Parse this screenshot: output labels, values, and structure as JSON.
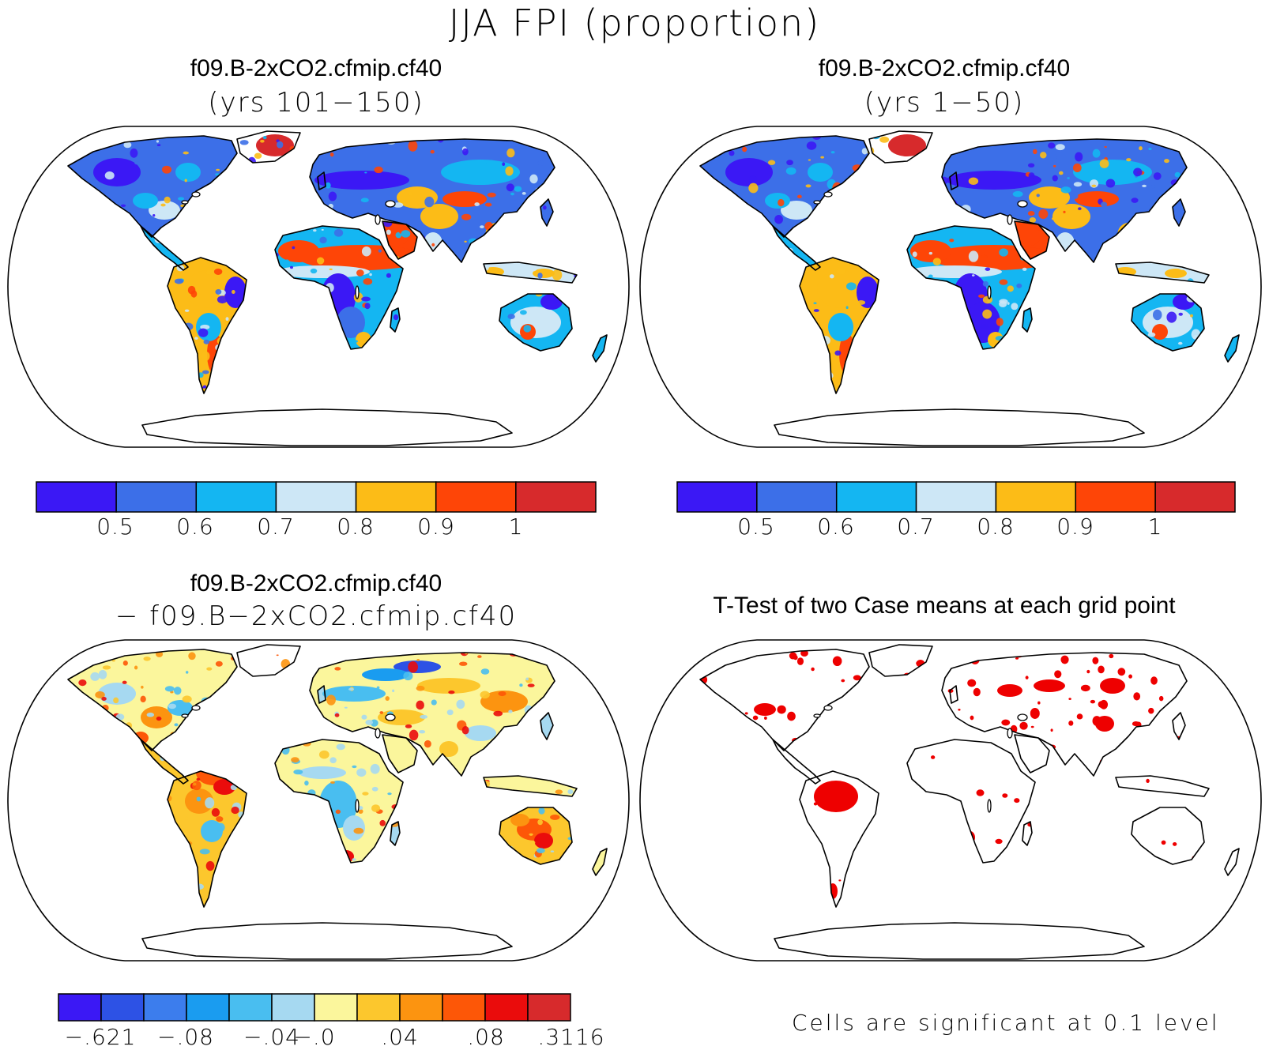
{
  "title": "JJA FPI (proportion)",
  "panels": [
    {
      "id": "case1",
      "title": "f09.B-2xCO2.cfmip.cf40",
      "subtitle": "(yrs 101−150)"
    },
    {
      "id": "case2",
      "title": "f09.B-2xCO2.cfmip.cf40",
      "subtitle": "(yrs 1−50)"
    },
    {
      "id": "diff",
      "title": "f09.B-2xCO2.cfmip.cf40",
      "subtitle": "− f09.B−2xCO2.cfmip.cf40"
    },
    {
      "id": "ttest",
      "title": "T-Test of two Case means at each grid point",
      "subtitle": ""
    }
  ],
  "colorbar_levels": {
    "colors": [
      "#3b18f5",
      "#3c6fe8",
      "#14b6f2",
      "#cde7f6",
      "#fcbc17",
      "#fe4507",
      "#d72a2c"
    ],
    "labels": [
      "0.5",
      "0.6",
      "0.7",
      "0.8",
      "0.9",
      "1"
    ]
  },
  "colorbar_diff": {
    "colors": [
      "#3b18f5",
      "#2d52e5",
      "#3c7ded",
      "#1a9cf0",
      "#49bef0",
      "#a6d9f1",
      "#fbf69c",
      "#fcc72d",
      "#fc9410",
      "#fd5707",
      "#ea0c0c",
      "#d72a2c"
    ],
    "labels": [
      "−.621",
      "−.08",
      "−.04",
      "−.0",
      ".04",
      ".08",
      ".3116"
    ]
  },
  "significance_color": "#ee0000",
  "significance_note": "Cells are significant at 0.1 level"
}
